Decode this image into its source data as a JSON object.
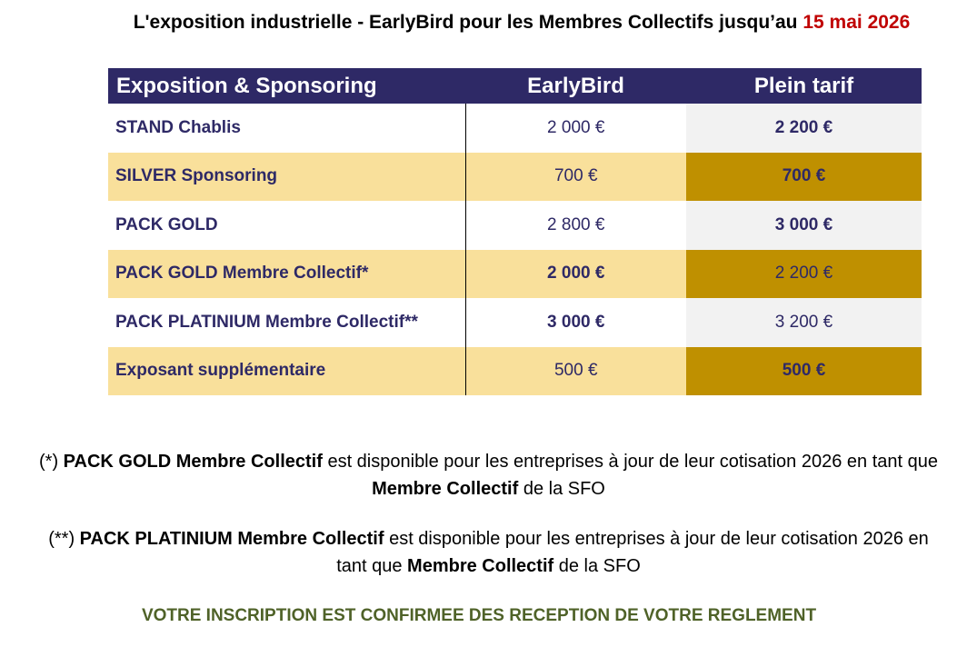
{
  "title": {
    "text": "L'exposition industrielle - EarlyBird pour les Membres Collectifs jusqu’au",
    "date": "15 mai 2026"
  },
  "table": {
    "headers": [
      "Exposition & Sponsoring",
      "EarlyBird",
      "Plein tarif"
    ],
    "rows": [
      {
        "name": "STAND Chablis",
        "early": "2 000 €",
        "full": "2 200 €",
        "early_bold": false,
        "full_bold": true,
        "style": "white"
      },
      {
        "name": "SILVER Sponsoring",
        "early": "700 €",
        "full": "700 €",
        "early_bold": false,
        "full_bold": true,
        "style": "gold"
      },
      {
        "name": "PACK GOLD",
        "early": "2 800 €",
        "full": "3 000 €",
        "early_bold": false,
        "full_bold": true,
        "style": "white"
      },
      {
        "name": "PACK GOLD Membre Collectif*",
        "early": "2 000 €",
        "full": "2 200 €",
        "early_bold": true,
        "full_bold": false,
        "style": "gold"
      },
      {
        "name": "PACK PLATINIUM Membre Collectif**",
        "early": "3 000 €",
        "full": "3 200 €",
        "early_bold": true,
        "full_bold": false,
        "style": "white"
      },
      {
        "name": "Exposant supplémentaire",
        "early": "500 €",
        "full": "500 €",
        "early_bold": false,
        "full_bold": true,
        "style": "gold"
      }
    ]
  },
  "notes": {
    "note1": {
      "prefix": "(*) ",
      "product": "PACK GOLD Membre Collectif",
      "middle": " est disponible pour les entreprises à jour de leur cotisation 2026 en tant que",
      "member": "Membre Collectif",
      "suffix": " de la SFO"
    },
    "note2": {
      "prefix": "(**) ",
      "product": "PACK PLATINIUM Membre Collectif",
      "middle": " est disponible pour les entreprises à jour de leur cotisation 2026 en",
      "line2_start": "tant que ",
      "member": "Membre Collectif",
      "suffix": " de la SFO"
    }
  },
  "confirmation": "VOTRE INSCRIPTION EST CONFIRMEE DES RECEPTION DE VOTRE REGLEMENT",
  "colors": {
    "header_bg": "#2e2966",
    "gold_light": "#f9e09b",
    "gold_dark": "#bf9000",
    "grey_cell": "#f2f2f2",
    "date_red": "#c00000",
    "confirm_green": "#4f6228"
  }
}
